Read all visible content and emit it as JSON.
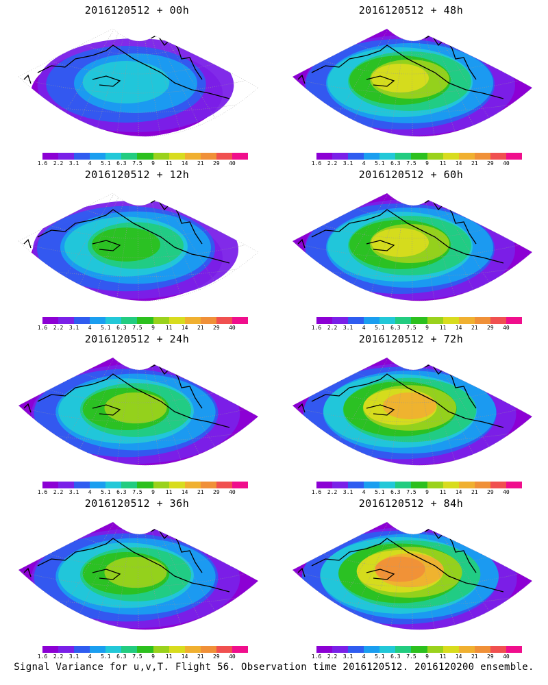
{
  "panels": [
    {
      "title": "2016120512 + 00h",
      "intensity": 0.25
    },
    {
      "title": "2016120512 + 48h",
      "intensity": 0.62
    },
    {
      "title": "2016120512 + 12h",
      "intensity": 0.4
    },
    {
      "title": "2016120512 + 60h",
      "intensity": 0.7
    },
    {
      "title": "2016120512 + 24h",
      "intensity": 0.5
    },
    {
      "title": "2016120512 + 72h",
      "intensity": 0.8
    },
    {
      "title": "2016120512 + 36h",
      "intensity": 0.58
    },
    {
      "title": "2016120512 + 84h",
      "intensity": 0.88
    }
  ],
  "legend": {
    "labels": [
      "1.6",
      "2.2",
      "3.1",
      "4",
      "5.1",
      "6.3",
      "7.5",
      "9",
      "11",
      "14",
      "21",
      "29",
      "40"
    ],
    "colors": [
      "#8c00d4",
      "#7a20e8",
      "#2f5cf0",
      "#1a9ef0",
      "#22c8d8",
      "#22cc80",
      "#2cc01e",
      "#9ad21c",
      "#d8dc1e",
      "#f0b030",
      "#f09038",
      "#f05050",
      "#f00e8c"
    ]
  },
  "footer": "Signal Variance for u,v,T. Flight 56. Observation time 2016120512. 2016120200 ensemble.",
  "colors": {
    "background": "#ffffff",
    "coastline": "#000000",
    "grid": "#999999"
  }
}
